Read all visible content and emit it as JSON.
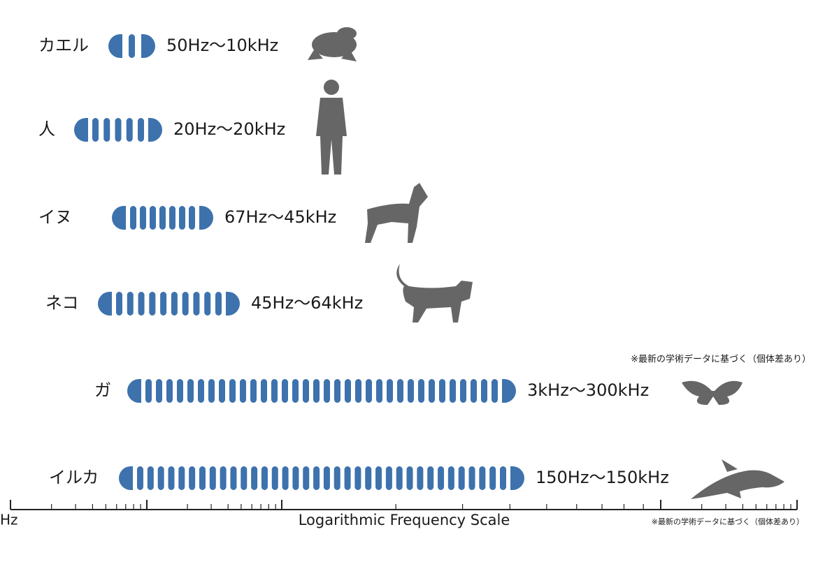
{
  "rows": [
    {
      "label": "カエル",
      "range": "50Hz～10kHz"
    },
    {
      "label": "人",
      "range": "20Hz～20kHz"
    },
    {
      "label": "イヌ",
      "range": "67Hz～45kHz"
    },
    {
      "label": "ネコ",
      "range": "45Hz～64kHz"
    },
    {
      "label": "ガ",
      "range": "3kHz～300kHz"
    },
    {
      "label": "イルカ",
      "range": "150Hz～150kHz"
    }
  ],
  "note_top": "※最新の学術データに基づく（個体差あり）",
  "axis": {
    "left_label": "Hz",
    "title": "Logarithmic Frequency Scale",
    "note": "※最新の学術データに基づく（個体差あり）"
  }
}
